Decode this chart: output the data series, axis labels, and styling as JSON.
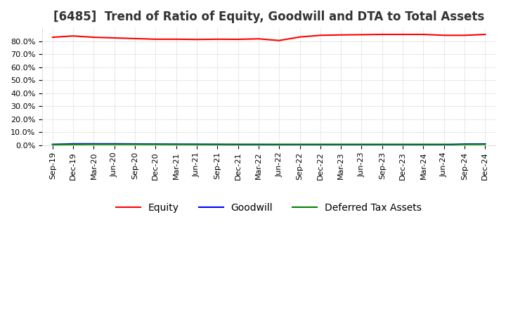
{
  "title": "[6485]  Trend of Ratio of Equity, Goodwill and DTA to Total Assets",
  "x_labels": [
    "Sep-19",
    "Dec-19",
    "Mar-20",
    "Jun-20",
    "Sep-20",
    "Dec-20",
    "Mar-21",
    "Jun-21",
    "Sep-21",
    "Dec-21",
    "Mar-22",
    "Jun-22",
    "Sep-22",
    "Dec-22",
    "Mar-23",
    "Jun-23",
    "Sep-23",
    "Dec-23",
    "Mar-24",
    "Jun-24",
    "Sep-24",
    "Dec-24"
  ],
  "equity": [
    0.83,
    0.84,
    0.83,
    0.825,
    0.82,
    0.815,
    0.815,
    0.813,
    0.815,
    0.814,
    0.818,
    0.805,
    0.832,
    0.845,
    0.848,
    0.85,
    0.852,
    0.852,
    0.852,
    0.845,
    0.845,
    0.852
  ],
  "goodwill": [
    0.005,
    0.01,
    0.01,
    0.01,
    0.009,
    0.008,
    0.007,
    0.006,
    0.005,
    0.004,
    0.004,
    0.003,
    0.002,
    0.002,
    0.002,
    0.002,
    0.002,
    0.002,
    0.001,
    0.001,
    0.008,
    0.009
  ],
  "dta": [
    0.005,
    0.005,
    0.006,
    0.006,
    0.006,
    0.006,
    0.006,
    0.006,
    0.006,
    0.006,
    0.006,
    0.006,
    0.006,
    0.006,
    0.006,
    0.006,
    0.006,
    0.006,
    0.006,
    0.006,
    0.006,
    0.006
  ],
  "equity_color": "#ff0000",
  "goodwill_color": "#0000ff",
  "dta_color": "#008000",
  "ylim": [
    0.0,
    0.9
  ],
  "yticks": [
    0.0,
    0.1,
    0.2,
    0.3,
    0.4,
    0.5,
    0.6,
    0.7,
    0.8
  ],
  "background_color": "#ffffff",
  "grid_color": "#aaaaaa",
  "title_fontsize": 12,
  "tick_fontsize": 8,
  "legend_fontsize": 10
}
